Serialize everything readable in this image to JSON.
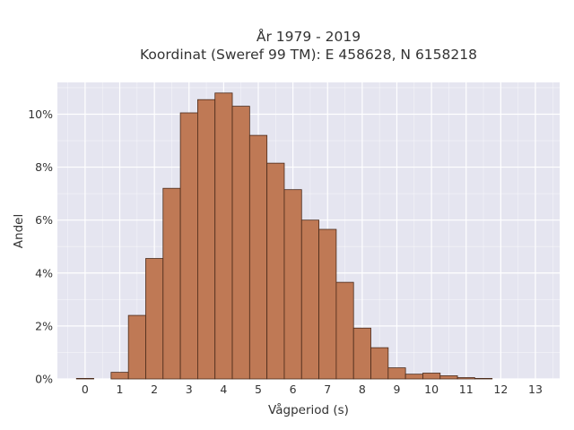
{
  "chart_data": {
    "type": "bar",
    "title_lines": [
      "År 1979 - 2019",
      "Koordinat (Sweref 99 TM): E 458628, N 6158218"
    ],
    "xlabel": "Vågperiod (s)",
    "ylabel": "Andel",
    "x_ticks": [
      "0",
      "1",
      "2",
      "3",
      "4",
      "5",
      "6",
      "7",
      "8",
      "9",
      "10",
      "11",
      "12",
      "13"
    ],
    "y_ticks": [
      "0%",
      "2%",
      "4%",
      "6%",
      "8%",
      "10%"
    ],
    "bin_width": 0.5,
    "bin_starts": [
      0,
      0.5,
      1,
      1.5,
      2,
      2.5,
      3,
      3.5,
      4,
      4.5,
      5,
      5.5,
      6,
      6.5,
      7,
      7.5,
      8,
      8.5,
      9,
      9.5,
      10,
      10.5,
      11,
      11.5,
      12,
      12.5
    ],
    "values": [
      0.02,
      0.0,
      0.25,
      2.4,
      4.55,
      7.2,
      10.05,
      10.55,
      10.8,
      10.3,
      9.2,
      8.15,
      7.15,
      6.0,
      5.65,
      3.65,
      1.92,
      1.18,
      0.42,
      0.18,
      0.22,
      0.12,
      0.05,
      0.02,
      0.0,
      0.0
    ],
    "xlim": [
      -0.8,
      13.7
    ],
    "ylim": [
      0,
      11.2
    ],
    "grid": true,
    "colors": {
      "bar_fill": "#bf7955",
      "bar_edge": "#4a2a1a",
      "plot_background": "#e5e5f0",
      "grid": "#ffffff"
    }
  }
}
